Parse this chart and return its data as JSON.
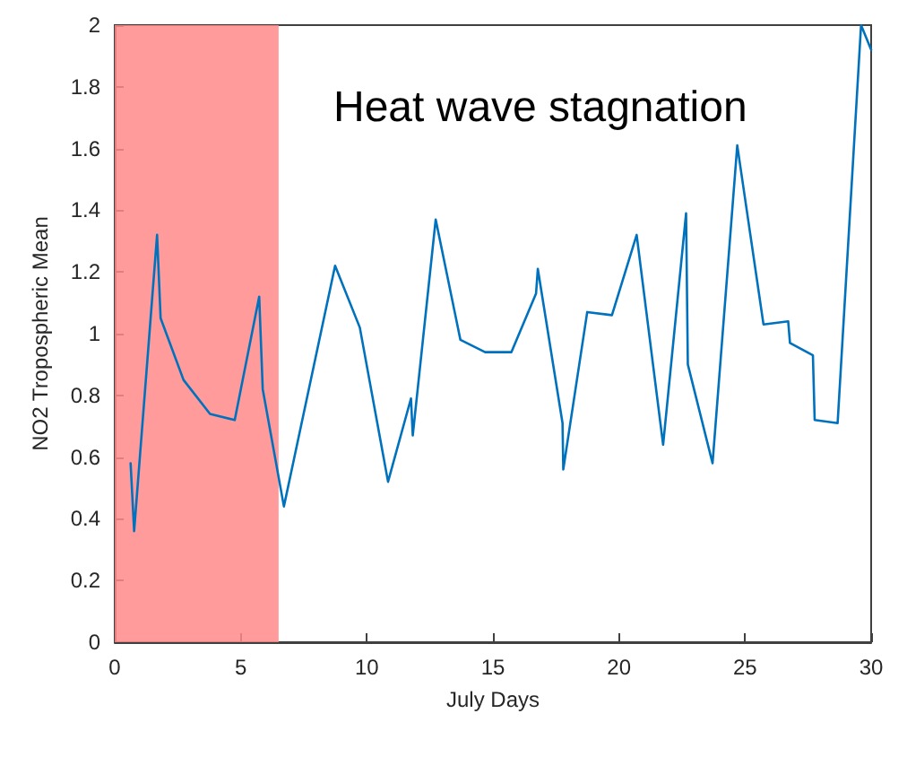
{
  "chart_data": {
    "type": "line",
    "xlabel": "July Days",
    "ylabel": "NO2 Tropospheric Mean",
    "annotations": [
      "Heat wave stagnation"
    ],
    "series": [
      {
        "color": "#0072bd",
        "x": [
          0.63,
          0.77,
          1.68,
          1.82,
          2.73,
          3.78,
          4.76,
          5.73,
          5.87,
          6.71,
          8.74,
          9.72,
          10.84,
          11.75,
          11.82,
          12.73,
          13.71,
          14.69,
          15.73,
          16.71,
          16.78,
          17.76,
          17.79,
          18.74,
          19.72,
          20.7,
          21.75,
          22.66,
          22.73,
          23.71,
          24.69,
          25.73,
          26.71,
          26.78,
          27.69,
          27.76,
          28.67,
          29.6,
          30
        ],
        "values": [
          0.58,
          0.36,
          1.32,
          1.05,
          0.85,
          0.74,
          0.72,
          1.12,
          0.82,
          0.44,
          1.22,
          1.02,
          0.52,
          0.79,
          0.67,
          1.37,
          0.98,
          0.94,
          0.94,
          1.13,
          1.21,
          0.71,
          0.56,
          1.07,
          1.06,
          1.32,
          0.64,
          1.39,
          0.9,
          0.58,
          1.61,
          1.03,
          1.04,
          0.97,
          0.93,
          0.72,
          0.71,
          2.0,
          1.92
        ]
      }
    ],
    "bands": [
      {
        "axis": "x",
        "from": 0,
        "to": 6.5,
        "color": "#ff8a8a"
      }
    ],
    "xlim": [
      0,
      30
    ],
    "xticks": [
      0,
      5,
      10,
      15,
      20,
      25,
      30
    ],
    "ylim": [
      0,
      2
    ],
    "yticks": [
      0,
      0.2,
      0.4,
      0.6,
      0.8,
      1,
      1.2,
      1.4,
      1.6,
      1.8,
      2
    ],
    "grid": false,
    "marker": "none",
    "line_style": "solid"
  }
}
